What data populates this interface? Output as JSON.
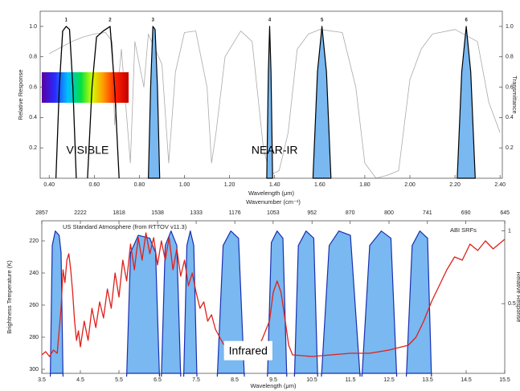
{
  "chart_data": [
    {
      "type": "line",
      "xlabel": "Wavelength (μm)",
      "ylabel": "Relative Response",
      "y2label": "Transmittance",
      "xlim": [
        0.36,
        2.41
      ],
      "ylim": [
        0,
        1.1
      ],
      "y2lim": [
        0,
        1.1
      ],
      "xticks": [
        {
          "value": 0.4,
          "label": "0.40"
        },
        {
          "value": 0.6,
          "label": "0.60"
        },
        {
          "value": 0.8,
          "label": "0.80"
        },
        {
          "value": 1.0,
          "label": "1.00"
        },
        {
          "value": 1.2,
          "label": "1.20"
        },
        {
          "value": 1.4,
          "label": "1.40"
        },
        {
          "value": 1.6,
          "label": "1.60"
        },
        {
          "value": 1.8,
          "label": "1.80"
        },
        {
          "value": 2.0,
          "label": "2.00"
        },
        {
          "value": 2.2,
          "label": "2.20"
        },
        {
          "value": 2.4,
          "label": "2.40"
        }
      ],
      "yticks": [
        0.2,
        0.4,
        0.6,
        0.8,
        {
          "value": 1,
          "label": "1.0"
        }
      ],
      "y2ticks": [
        0.2,
        0.4,
        0.6,
        0.8,
        {
          "value": 1,
          "label": "1.0"
        }
      ],
      "annotations": [
        "VISIBLE",
        "NEAR-IR"
      ],
      "series": [
        {
          "color": "#aaaaaa",
          "axis": "y2",
          "x": [
            0.4,
            0.45,
            0.5,
            0.55,
            0.6,
            0.65,
            0.68,
            0.69,
            0.72,
            0.76,
            0.78,
            0.82,
            0.84,
            0.9,
            0.93,
            0.96,
            1.0,
            1.05,
            1.1,
            1.12,
            1.14,
            1.18,
            1.25,
            1.3,
            1.35,
            1.38,
            1.42,
            1.46,
            1.5,
            1.55,
            1.6,
            1.7,
            1.76,
            1.8,
            1.85,
            1.9,
            1.95,
            2.0,
            2.05,
            2.1,
            2.2,
            2.3,
            2.35,
            2.4
          ],
          "values": [
            0.82,
            0.86,
            0.9,
            0.93,
            0.95,
            0.96,
            0.9,
            0.35,
            0.85,
            0.1,
            0.9,
            0.6,
            0.95,
            0.75,
            0.1,
            0.7,
            0.96,
            0.97,
            0.6,
            0.1,
            0.3,
            0.8,
            0.97,
            0.9,
            0.2,
            0.02,
            0.05,
            0.3,
            0.85,
            0.95,
            0.98,
            0.96,
            0.6,
            0.1,
            0.0,
            0.02,
            0.05,
            0.65,
            0.85,
            0.95,
            0.98,
            0.9,
            0.5,
            0.3
          ]
        },
        {
          "name": "1",
          "color": "#000000",
          "x": [
            0.43,
            0.445,
            0.46,
            0.475,
            0.49,
            0.505,
            0.52
          ],
          "values": [
            0,
            0.6,
            0.97,
            1.0,
            0.98,
            0.6,
            0
          ]
        },
        {
          "name": "2",
          "color": "#000000",
          "x": [
            0.57,
            0.59,
            0.61,
            0.64,
            0.67,
            0.69,
            0.71
          ],
          "values": [
            0,
            0.6,
            0.93,
            0.97,
            1.0,
            0.6,
            0
          ]
        },
        {
          "name": "3",
          "color": "#000000",
          "fill": "#79b8f0",
          "x": [
            0.84,
            0.85,
            0.86,
            0.87,
            0.88,
            0.89
          ],
          "values": [
            0,
            0.6,
            1.0,
            0.98,
            0.6,
            0
          ]
        },
        {
          "name": "4",
          "color": "#000000",
          "fill": "#79b8f0",
          "x": [
            1.365,
            1.372,
            1.378,
            1.384,
            1.391
          ],
          "values": [
            0,
            0.7,
            1.0,
            0.7,
            0
          ]
        },
        {
          "name": "5",
          "color": "#000000",
          "fill": "#79b8f0",
          "x": [
            1.57,
            1.59,
            1.61,
            1.63,
            1.65
          ],
          "values": [
            0,
            0.7,
            1.0,
            0.7,
            0
          ]
        },
        {
          "name": "6",
          "color": "#000000",
          "fill": "#79b8f0",
          "x": [
            2.21,
            2.23,
            2.25,
            2.27,
            2.29
          ],
          "values": [
            0,
            0.7,
            1.0,
            0.7,
            0
          ]
        }
      ]
    },
    {
      "type": "line",
      "xlabel": "Wavelength (μm)",
      "x2label": "Wavenumber (cm⁻¹)",
      "ylabel": "Brightness Temperature (K)",
      "y2label": "Relative Response",
      "xlim": [
        3.5,
        15.5
      ],
      "ylim": [
        302.5,
        207.5
      ],
      "y2lim": [
        0.02,
        1.07
      ],
      "xticks": [
        3.5,
        4.5,
        5.5,
        6.5,
        7.5,
        8.5,
        9.5,
        10.5,
        11.5,
        12.5,
        13.5,
        14.5,
        15.5
      ],
      "x2ticks": [
        2857,
        2222,
        1818,
        1538,
        1333,
        1176,
        1053,
        952,
        870,
        800,
        741,
        690,
        645
      ],
      "yticks": [
        220,
        240,
        260,
        280,
        300
      ],
      "y2ticks": [
        0.5,
        1
      ],
      "annotations": [
        "Infrared"
      ],
      "series": [
        {
          "name": "ABI SRFs",
          "color": "#1a2fb0",
          "fill": "#79b8f0",
          "axis": "y2",
          "x": [
            3.72,
            3.77,
            3.85,
            3.95,
            4.0,
            4.05,
            null,
            5.7,
            5.8,
            6.0,
            6.3,
            6.45,
            6.55,
            null,
            6.6,
            6.7,
            6.85,
            7.0,
            7.1,
            null,
            7.18,
            7.26,
            7.35,
            7.44,
            7.52,
            null,
            8.05,
            8.2,
            8.4,
            8.6,
            8.75,
            null,
            9.35,
            9.45,
            9.6,
            9.75,
            9.85,
            null,
            10.05,
            10.15,
            10.35,
            10.55,
            10.65,
            null,
            10.75,
            10.95,
            11.2,
            11.5,
            11.75,
            null,
            11.8,
            12.0,
            12.3,
            12.55,
            12.7,
            null,
            12.95,
            13.1,
            13.3,
            13.5,
            13.6
          ],
          "values": [
            0,
            0.9,
            1.0,
            0.97,
            0.85,
            0,
            null,
            0,
            0.85,
            0.97,
            0.95,
            0.85,
            0,
            null,
            0,
            0.9,
            1.0,
            0.9,
            0,
            null,
            0,
            0.9,
            1.0,
            0.9,
            0,
            null,
            0,
            0.9,
            1.0,
            0.95,
            0,
            null,
            0,
            0.92,
            1.0,
            0.95,
            0,
            null,
            0,
            0.9,
            1.0,
            0.95,
            0,
            null,
            0,
            0.9,
            1.0,
            0.97,
            0,
            null,
            0,
            0.9,
            1.0,
            0.95,
            0,
            null,
            0,
            0.9,
            1.0,
            0.95,
            0
          ]
        },
        {
          "name": "US Standard Atmosphere (from RTTOV v11.3)",
          "color": "#e0201a",
          "x": [
            3.5,
            3.6,
            3.7,
            3.8,
            3.9,
            4.0,
            4.05,
            4.1,
            4.15,
            4.2,
            4.25,
            4.3,
            4.35,
            4.4,
            4.45,
            4.5,
            4.6,
            4.7,
            4.8,
            4.9,
            5.0,
            5.1,
            5.2,
            5.3,
            5.4,
            5.5,
            5.6,
            5.7,
            5.8,
            5.9,
            6.0,
            6.1,
            6.2,
            6.3,
            6.4,
            6.5,
            6.6,
            6.7,
            6.8,
            6.9,
            7.0,
            7.1,
            7.2,
            7.3,
            7.4,
            7.5,
            7.6,
            7.7,
            7.8,
            7.9,
            8.0,
            8.2,
            8.4,
            8.6,
            8.8,
            9.0,
            9.2,
            9.4,
            9.5,
            9.6,
            9.7,
            9.8,
            9.9,
            10.0,
            10.5,
            11.0,
            11.5,
            12.0,
            12.5,
            13.0,
            13.2,
            13.4,
            13.6,
            13.8,
            14.0,
            14.2,
            14.4,
            14.6,
            14.8,
            15.0,
            15.2,
            15.5
          ],
          "values": [
            291,
            289,
            292,
            288,
            290,
            262,
            238,
            246,
            232,
            228,
            238,
            252,
            270,
            282,
            276,
            286,
            270,
            282,
            262,
            274,
            258,
            268,
            250,
            262,
            240,
            255,
            232,
            245,
            222,
            238,
            218,
            232,
            215,
            228,
            218,
            235,
            220,
            232,
            218,
            238,
            225,
            242,
            232,
            248,
            240,
            252,
            262,
            258,
            270,
            266,
            275,
            284,
            289,
            290,
            288,
            286,
            282,
            270,
            252,
            245,
            252,
            268,
            285,
            291,
            292,
            291,
            290,
            290,
            288,
            285,
            280,
            270,
            258,
            248,
            238,
            230,
            232,
            222,
            226,
            220,
            225,
            219
          ]
        }
      ]
    }
  ]
}
